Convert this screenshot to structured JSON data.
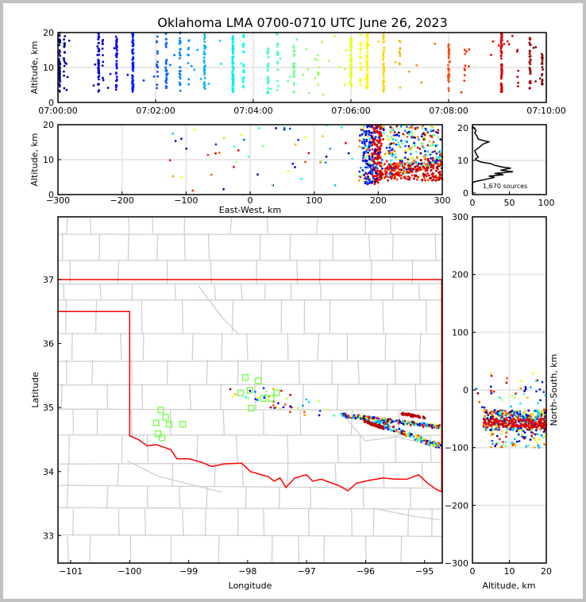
{
  "title": "Oklahoma LMA 0700-0710 UTC June 26, 2023",
  "chart_data": [
    {
      "id": "time_height",
      "type": "scatter",
      "ylabel": "Altitude, km",
      "xlim_s": [
        0,
        600
      ],
      "ylim": [
        0,
        20
      ],
      "xticks": [
        {
          "v": 0,
          "label": "07:00:00"
        },
        {
          "v": 120,
          "label": "07:02:00"
        },
        {
          "v": 240,
          "label": "07:04:00"
        },
        {
          "v": 360,
          "label": "07:06:00"
        },
        {
          "v": 480,
          "label": "07:08:00"
        },
        {
          "v": 600,
          "label": "07:10:00"
        }
      ],
      "yticks": [
        {
          "v": 0,
          "label": "0"
        },
        {
          "v": 10,
          "label": "10"
        },
        {
          "v": 20,
          "label": "20"
        }
      ],
      "flashes": [
        [
          2,
          3,
          20,
          45
        ],
        [
          8,
          4,
          19,
          18
        ],
        [
          50,
          3,
          20,
          45
        ],
        [
          55,
          6,
          18,
          10
        ],
        [
          72,
          3,
          19,
          35
        ],
        [
          92,
          3,
          20,
          70
        ],
        [
          122,
          4,
          20,
          12
        ],
        [
          133,
          4,
          20,
          30
        ],
        [
          150,
          3,
          20,
          28
        ],
        [
          160,
          5,
          18,
          8
        ],
        [
          180,
          3,
          20,
          35
        ],
        [
          215,
          3,
          20,
          80
        ],
        [
          228,
          4,
          20,
          22
        ],
        [
          258,
          2,
          16,
          25
        ],
        [
          270,
          3,
          20,
          18
        ],
        [
          290,
          2,
          17,
          25
        ],
        [
          320,
          5,
          15,
          6
        ],
        [
          360,
          4,
          19,
          55
        ],
        [
          372,
          5,
          20,
          18
        ],
        [
          380,
          4,
          20,
          60
        ],
        [
          400,
          3,
          20,
          45
        ],
        [
          420,
          4,
          19,
          10
        ],
        [
          480,
          3,
          18,
          35
        ],
        [
          500,
          6,
          19,
          6
        ],
        [
          545,
          3,
          20,
          75
        ],
        [
          565,
          4,
          18,
          6
        ],
        [
          580,
          4,
          19,
          35
        ],
        [
          595,
          5,
          14,
          22
        ]
      ]
    },
    {
      "id": "ew_height",
      "type": "scatter",
      "xlabel": "East-West, km",
      "ylabel": "Altitude, km",
      "xlim": [
        -300,
        300
      ],
      "ylim": [
        0,
        20
      ],
      "xticks": [
        {
          "v": -300,
          "label": "−300"
        },
        {
          "v": -200,
          "label": "−200"
        },
        {
          "v": -100,
          "label": "−100"
        },
        {
          "v": 0,
          "label": "0"
        },
        {
          "v": 100,
          "label": "100"
        },
        {
          "v": 200,
          "label": "200"
        },
        {
          "v": 300,
          "label": "300"
        }
      ],
      "yticks": [
        {
          "v": 0,
          "label": "0"
        },
        {
          "v": 10,
          "label": "10"
        },
        {
          "v": 20,
          "label": "20"
        }
      ],
      "clusters": [
        {
          "x": [
            170,
            300
          ],
          "y": [
            3,
            20
          ],
          "t": [
            0,
            600
          ],
          "n": 420
        },
        {
          "x": [
            190,
            205
          ],
          "y": [
            3,
            20
          ],
          "t": [
            530,
            560
          ],
          "n": 140
        },
        {
          "x": [
            210,
            300
          ],
          "y": [
            4,
            9
          ],
          "t": [
            480,
            600
          ],
          "n": 180
        },
        {
          "x": [
            175,
            200
          ],
          "y": [
            3,
            20
          ],
          "t": [
            0,
            150
          ],
          "n": 90
        },
        {
          "x": [
            -140,
            160
          ],
          "y": [
            1,
            20
          ],
          "t": [
            0,
            600
          ],
          "n": 55
        }
      ]
    },
    {
      "id": "alt_histogram",
      "type": "line",
      "xlim": [
        0,
        100
      ],
      "ylim": [
        -0.5,
        21
      ],
      "xticks": [
        {
          "v": 0,
          "label": "0"
        },
        {
          "v": 50,
          "label": "50"
        },
        {
          "v": 100,
          "label": "100"
        }
      ],
      "yticks": [
        {
          "v": 0,
          "label": "0"
        },
        {
          "v": 10,
          "label": "10"
        },
        {
          "v": 20,
          "label": "20"
        }
      ],
      "annotation": "1,670 sources",
      "counts_alt": [
        [
          0,
          3
        ],
        [
          2,
          3.4
        ],
        [
          10,
          3.8
        ],
        [
          18,
          4.2
        ],
        [
          30,
          4.8
        ],
        [
          22,
          5.2
        ],
        [
          42,
          5.6
        ],
        [
          30,
          6
        ],
        [
          55,
          6.5
        ],
        [
          38,
          7
        ],
        [
          52,
          7.6
        ],
        [
          40,
          8
        ],
        [
          30,
          8.5
        ],
        [
          25,
          9
        ],
        [
          12,
          9.5
        ],
        [
          6,
          10
        ],
        [
          4,
          10.5
        ],
        [
          8,
          11
        ],
        [
          5,
          12
        ],
        [
          3,
          13
        ],
        [
          9,
          14
        ],
        [
          14,
          15
        ],
        [
          22,
          15.7
        ],
        [
          8,
          16.5
        ],
        [
          6,
          17.5
        ],
        [
          3,
          18.5
        ],
        [
          5,
          19.2
        ],
        [
          2,
          20
        ],
        [
          0,
          20.5
        ]
      ]
    },
    {
      "id": "plan_view",
      "type": "scatter",
      "xlabel": "Longitude",
      "ylabel": "Latitude",
      "xlim": [
        -101.215,
        -94.7
      ],
      "ylim": [
        32.57,
        37.98
      ],
      "xticks": [
        {
          "v": -101,
          "label": "−101"
        },
        {
          "v": -100,
          "label": "−100"
        },
        {
          "v": -99,
          "label": "−99"
        },
        {
          "v": -98,
          "label": "−98"
        },
        {
          "v": -97,
          "label": "−97"
        },
        {
          "v": -96,
          "label": "−96"
        },
        {
          "v": -95,
          "label": "−95"
        }
      ],
      "yticks": [
        {
          "v": 33,
          "label": "33"
        },
        {
          "v": 34,
          "label": "34"
        },
        {
          "v": 35,
          "label": "35"
        },
        {
          "v": 36,
          "label": "36"
        },
        {
          "v": 37,
          "label": "37"
        }
      ],
      "stations": [
        [
          -98.04,
          35.47
        ],
        [
          -97.82,
          35.42
        ],
        [
          -98.12,
          35.23
        ],
        [
          -97.96,
          35.27
        ],
        [
          -97.74,
          35.14
        ],
        [
          -97.51,
          35.23
        ],
        [
          -97.94,
          34.99
        ],
        [
          -97.6,
          35.14
        ],
        [
          -99.47,
          34.96
        ],
        [
          -99.39,
          34.85
        ],
        [
          -99.55,
          34.76
        ],
        [
          -99.33,
          34.74
        ],
        [
          -99.52,
          34.59
        ],
        [
          -99.45,
          34.53
        ],
        [
          -99.1,
          34.74
        ]
      ],
      "state_border": [
        [
          -101.215,
          37.0
        ],
        [
          -94.7,
          37.0
        ]
      ],
      "panhandle_border": [
        [
          -101.215,
          36.5
        ],
        [
          -100.0,
          36.5
        ],
        [
          -100.0,
          34.56
        ],
        [
          -99.85,
          34.5
        ],
        [
          -99.7,
          34.4
        ],
        [
          -99.55,
          34.42
        ],
        [
          -99.42,
          34.38
        ],
        [
          -99.3,
          34.34
        ],
        [
          -99.2,
          34.2
        ],
        [
          -99.0,
          34.2
        ],
        [
          -98.8,
          34.15
        ],
        [
          -98.6,
          34.08
        ],
        [
          -98.4,
          34.12
        ],
        [
          -98.1,
          34.13
        ],
        [
          -97.95,
          34.0
        ],
        [
          -97.8,
          33.96
        ],
        [
          -97.65,
          33.92
        ],
        [
          -97.55,
          33.85
        ],
        [
          -97.45,
          33.9
        ],
        [
          -97.35,
          33.75
        ],
        [
          -97.2,
          33.9
        ],
        [
          -97.0,
          33.95
        ],
        [
          -96.9,
          33.85
        ],
        [
          -96.75,
          33.88
        ],
        [
          -96.6,
          33.83
        ],
        [
          -96.45,
          33.78
        ],
        [
          -96.3,
          33.7
        ],
        [
          -96.15,
          33.82
        ],
        [
          -95.95,
          33.86
        ],
        [
          -95.7,
          33.9
        ],
        [
          -95.5,
          33.88
        ],
        [
          -95.3,
          33.88
        ],
        [
          -95.1,
          33.95
        ],
        [
          -94.95,
          33.82
        ],
        [
          -94.8,
          33.72
        ],
        [
          -94.7,
          33.68
        ]
      ],
      "clusters": [
        {
          "lon": [
            -96.4,
            -94.75
          ],
          "lat": [
            34.88,
            34.7
          ],
          "spread": 0.03,
          "t": [
            0,
            600
          ],
          "n": 260
        },
        {
          "lon": [
            -95.9,
            -94.75
          ],
          "lat": [
            34.8,
            34.4
          ],
          "spread": 0.04,
          "t": [
            0,
            600
          ],
          "n": 160
        },
        {
          "lon": [
            -96.0,
            -95.7
          ],
          "lat": [
            34.78,
            34.68
          ],
          "spread": 0.02,
          "t": [
            540,
            600
          ],
          "n": 60
        },
        {
          "lon": [
            -95.4,
            -95.0
          ],
          "lat": [
            34.9,
            34.85
          ],
          "spread": 0.02,
          "t": [
            540,
            600
          ],
          "n": 40
        },
        {
          "lon": [
            -98.2,
            -96.6
          ],
          "lat": [
            35.3,
            34.9
          ],
          "spread": 0.15,
          "t": [
            0,
            600
          ],
          "n": 45
        }
      ]
    },
    {
      "id": "ns_altitude",
      "type": "scatter",
      "xlabel": "Altitude, km",
      "ylabel": "North-South, km",
      "xlim": [
        0,
        20
      ],
      "ylim": [
        -300,
        300
      ],
      "xticks": [
        {
          "v": 0,
          "label": "0"
        },
        {
          "v": 10,
          "label": "10"
        },
        {
          "v": 20,
          "label": "20"
        }
      ],
      "yticks": [
        {
          "v": -300,
          "label": "−300"
        },
        {
          "v": -200,
          "label": "−200"
        },
        {
          "v": -100,
          "label": "−100"
        },
        {
          "v": 0,
          "label": "0"
        },
        {
          "v": 100,
          "label": "100"
        },
        {
          "v": 200,
          "label": "200"
        },
        {
          "v": 300,
          "label": "300"
        }
      ],
      "clusters": [
        {
          "x": [
            3,
            20
          ],
          "y": [
            -70,
            -35
          ],
          "t": [
            0,
            600
          ],
          "n": 420
        },
        {
          "x": [
            3,
            20
          ],
          "y": [
            -65,
            -50
          ],
          "t": [
            530,
            560
          ],
          "n": 160
        },
        {
          "x": [
            5,
            20
          ],
          "y": [
            -100,
            -70
          ],
          "t": [
            0,
            600
          ],
          "n": 70
        },
        {
          "x": [
            1,
            20
          ],
          "y": [
            -35,
            30
          ],
          "t": [
            0,
            600
          ],
          "n": 40
        }
      ]
    }
  ]
}
